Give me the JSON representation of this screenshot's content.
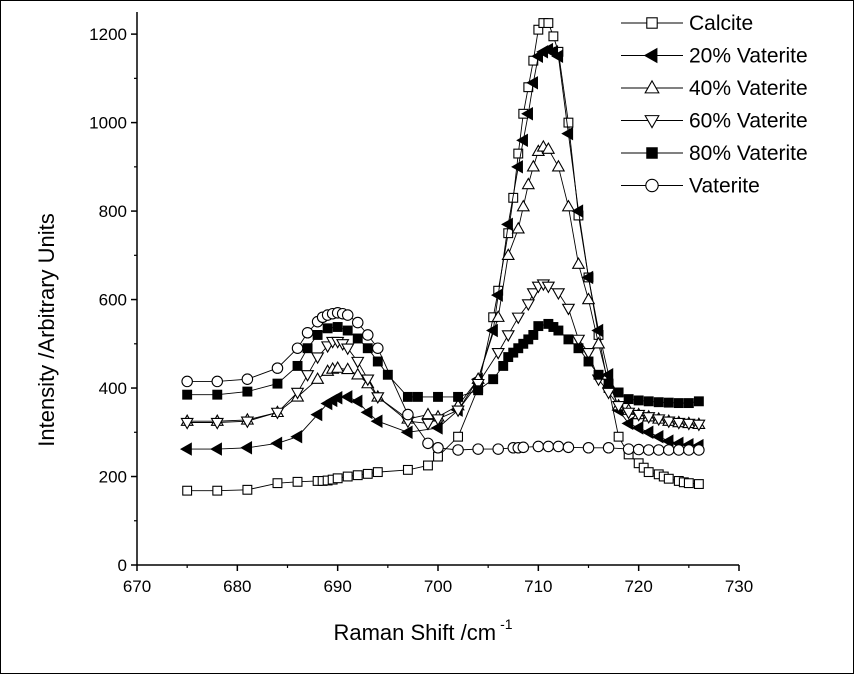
{
  "chart_data": {
    "type": "line",
    "xlabel": "Raman Shift /cm",
    "xlabel_sup": "-1",
    "ylabel": "Intensity /Arbitrary Units",
    "xlim": [
      670,
      730
    ],
    "ylim": [
      0,
      1250
    ],
    "x_ticks": [
      "670",
      "680",
      "690",
      "700",
      "710",
      "720",
      "730"
    ],
    "y_ticks": [
      "0",
      "200",
      "400",
      "600",
      "800",
      "1000",
      "1200"
    ],
    "legend_position": "top-right",
    "series": [
      {
        "name": "Calcite",
        "marker": "square-open",
        "x": [
          675,
          678,
          681,
          684,
          686,
          688,
          688.5,
          689,
          689.5,
          690,
          691,
          692,
          693,
          694,
          697,
          699,
          700,
          702,
          704,
          705.5,
          706,
          707,
          707.5,
          708,
          708.5,
          709,
          709.5,
          710,
          710.5,
          711,
          711.5,
          712,
          713,
          714,
          715,
          716,
          717,
          718,
          719,
          720,
          720.5,
          721,
          722,
          722.5,
          723,
          724,
          724.5,
          725,
          726
        ],
        "y": [
          168,
          168,
          170,
          185,
          188,
          190,
          190,
          191,
          193,
          196,
          200,
          203,
          206,
          210,
          215,
          225,
          245,
          290,
          400,
          560,
          620,
          750,
          830,
          930,
          1020,
          1080,
          1140,
          1210,
          1225,
          1225,
          1195,
          1160,
          1000,
          790,
          650,
          520,
          400,
          290,
          250,
          230,
          220,
          210,
          205,
          200,
          195,
          190,
          187,
          185,
          183
        ]
      },
      {
        "name": "20% Vaterite",
        "marker": "triangle-left-filled",
        "x": [
          675,
          678,
          681,
          684,
          686,
          688,
          689,
          689.5,
          690,
          691,
          692,
          693,
          694,
          697,
          700,
          702,
          704,
          705.5,
          706,
          707,
          708,
          708.5,
          709,
          709.5,
          710,
          710.5,
          711,
          711.5,
          712,
          713,
          714,
          715,
          716,
          717,
          718,
          719,
          720,
          721,
          722,
          723,
          724,
          725,
          726
        ],
        "y": [
          262,
          262,
          265,
          275,
          290,
          340,
          365,
          372,
          378,
          380,
          370,
          345,
          325,
          300,
          310,
          350,
          420,
          530,
          610,
          770,
          900,
          960,
          1020,
          1090,
          1150,
          1160,
          1165,
          1160,
          1150,
          975,
          800,
          650,
          530,
          430,
          350,
          320,
          310,
          300,
          290,
          280,
          275,
          272,
          270
        ]
      },
      {
        "name": "40% Vaterite",
        "marker": "triangle-up-open",
        "x": [
          675,
          678,
          681,
          684,
          686,
          688,
          689,
          689.5,
          690,
          691,
          692,
          693,
          694,
          697,
          699,
          700,
          702,
          704,
          706,
          707,
          708,
          708.5,
          709,
          709.5,
          710,
          710.5,
          711,
          712,
          713,
          714,
          715,
          716,
          717,
          718,
          719,
          720,
          721,
          722,
          723,
          724,
          725,
          726
        ],
        "y": [
          325,
          325,
          328,
          345,
          380,
          420,
          438,
          443,
          445,
          442,
          430,
          410,
          380,
          330,
          340,
          335,
          360,
          420,
          560,
          700,
          760,
          810,
          860,
          900,
          935,
          945,
          940,
          900,
          810,
          680,
          600,
          500,
          410,
          360,
          350,
          340,
          335,
          330,
          325,
          322,
          320,
          318
        ]
      },
      {
        "name": "60% Vaterite",
        "marker": "triangle-down-open",
        "x": [
          675,
          678,
          681,
          684,
          686,
          687,
          688,
          689,
          689.5,
          690,
          690.5,
          691,
          692,
          693,
          694,
          697,
          699,
          700,
          702,
          704,
          706,
          707,
          708,
          709,
          709.5,
          710,
          710.5,
          711,
          712,
          713,
          714,
          715,
          716,
          717,
          718,
          719,
          720,
          721,
          722,
          723,
          724,
          725,
          726
        ],
        "y": [
          322,
          322,
          325,
          345,
          390,
          430,
          470,
          495,
          505,
          505,
          500,
          490,
          460,
          420,
          380,
          325,
          320,
          330,
          350,
          410,
          480,
          520,
          560,
          590,
          615,
          630,
          635,
          630,
          615,
          580,
          510,
          480,
          420,
          390,
          360,
          345,
          340,
          335,
          330,
          325,
          322,
          320,
          318
        ]
      },
      {
        "name": "80% Vaterite",
        "marker": "square-filled",
        "x": [
          675,
          678,
          681,
          684,
          686,
          687,
          688,
          689,
          690,
          691,
          692,
          693,
          694,
          695,
          697,
          698,
          700,
          702,
          704,
          705.5,
          706.5,
          707,
          707.5,
          708,
          708.5,
          709,
          709.5,
          710,
          711,
          711.5,
          712,
          713,
          714,
          715,
          716,
          717,
          718,
          719,
          720,
          721,
          722,
          723,
          724,
          725,
          726
        ],
        "y": [
          385,
          385,
          392,
          410,
          450,
          490,
          520,
          535,
          538,
          530,
          512,
          490,
          460,
          430,
          380,
          380,
          380,
          380,
          395,
          420,
          450,
          470,
          480,
          490,
          500,
          510,
          520,
          540,
          545,
          538,
          530,
          510,
          490,
          460,
          430,
          410,
          390,
          375,
          372,
          370,
          368,
          367,
          366,
          366,
          370
        ]
      },
      {
        "name": "Vaterite",
        "marker": "circle-open",
        "x": [
          675,
          678,
          681,
          684,
          686,
          687,
          688,
          688.5,
          689,
          689.5,
          690,
          690.5,
          691,
          692,
          693,
          694,
          697,
          699,
          700,
          702,
          704,
          706,
          707.5,
          708,
          708.5,
          710,
          711,
          712,
          713,
          715,
          717,
          719,
          720,
          721,
          722,
          723,
          724,
          725,
          726
        ],
        "y": [
          415,
          415,
          420,
          445,
          490,
          525,
          550,
          560,
          565,
          568,
          570,
          568,
          565,
          548,
          520,
          490,
          340,
          275,
          265,
          260,
          262,
          262,
          265,
          265,
          266,
          268,
          268,
          268,
          266,
          265,
          265,
          262,
          261,
          260,
          260,
          260,
          260,
          260,
          260
        ]
      }
    ]
  }
}
